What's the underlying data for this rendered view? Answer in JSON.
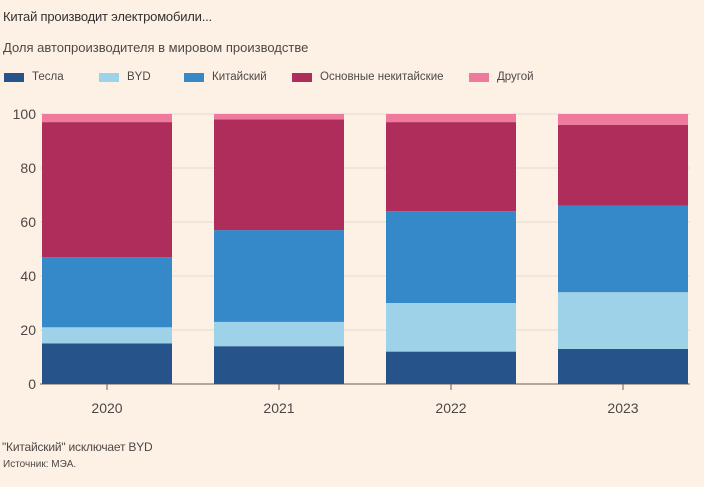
{
  "header": {
    "title": "Китай производит электромобили...",
    "subtitle": "Доля автопроизводителя в мировом производстве"
  },
  "footer": {
    "note": "\"Китайский\" исключает BYD",
    "source": "Источник: МЭА."
  },
  "chart_data": {
    "type": "bar",
    "stacked": true,
    "title": "Китай производит электромобили...",
    "subtitle": "Доля автопроизводителя в мировом производстве",
    "xlabel": "",
    "ylabel": "",
    "ylim": [
      0,
      100
    ],
    "yticks": [
      0,
      20,
      40,
      60,
      80,
      100
    ],
    "grid": true,
    "legend_position": "top",
    "categories": [
      "2020",
      "2021",
      "2022",
      "2023"
    ],
    "series": [
      {
        "name": "Тесла",
        "color": "#26538a",
        "values": [
          15,
          14,
          12,
          13
        ]
      },
      {
        "name": "BYD",
        "color": "#9dd2e8",
        "values": [
          6,
          9,
          18,
          21
        ]
      },
      {
        "name": "Китайский",
        "color": "#3589c9",
        "values": [
          26,
          34,
          34,
          32
        ]
      },
      {
        "name": "Основные некитайские",
        "color": "#ae2d5a",
        "values": [
          50,
          41,
          33,
          30
        ]
      },
      {
        "name": "Другой",
        "color": "#f0799e",
        "values": [
          3,
          2,
          3,
          4
        ]
      }
    ]
  }
}
